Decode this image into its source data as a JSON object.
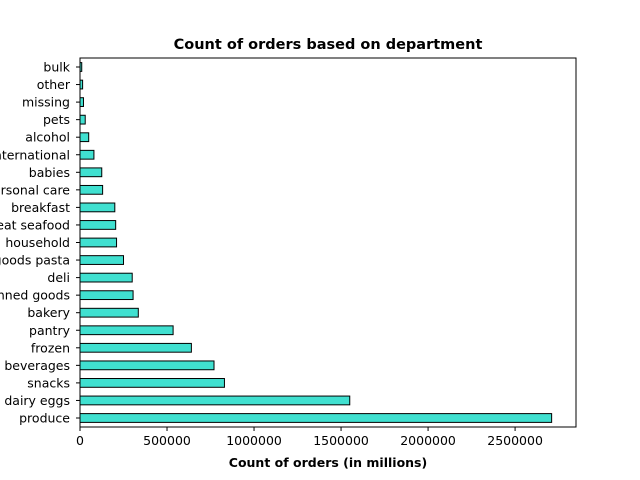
{
  "chart_data": {
    "type": "bar",
    "orientation": "horizontal",
    "title": "Count of orders based on department",
    "xlabel": "Count of orders (in millions)",
    "ylabel": "",
    "categories": [
      "produce",
      "dairy eggs",
      "snacks",
      "beverages",
      "frozen",
      "pantry",
      "bakery",
      "canned goods",
      "deli",
      "dry goods pasta",
      "household",
      "meat seafood",
      "breakfast",
      "personal care",
      "babies",
      "international",
      "alcohol",
      "pets",
      "missing",
      "other",
      "bulk"
    ],
    "values": [
      2710000,
      1550000,
      830000,
      770000,
      640000,
      535000,
      335000,
      305000,
      300000,
      250000,
      210000,
      205000,
      200000,
      130000,
      125000,
      80000,
      50000,
      30000,
      20000,
      15000,
      10000
    ],
    "xlim": [
      0,
      2850000
    ],
    "xticks": [
      0,
      500000,
      1000000,
      1500000,
      2000000,
      2500000
    ],
    "xtick_labels": [
      "0",
      "500000",
      "1000000",
      "1500000",
      "2000000",
      "2500000"
    ],
    "bar_color": "#40E0D0",
    "edge_color": "#000000",
    "grid": false,
    "legend": "none"
  }
}
